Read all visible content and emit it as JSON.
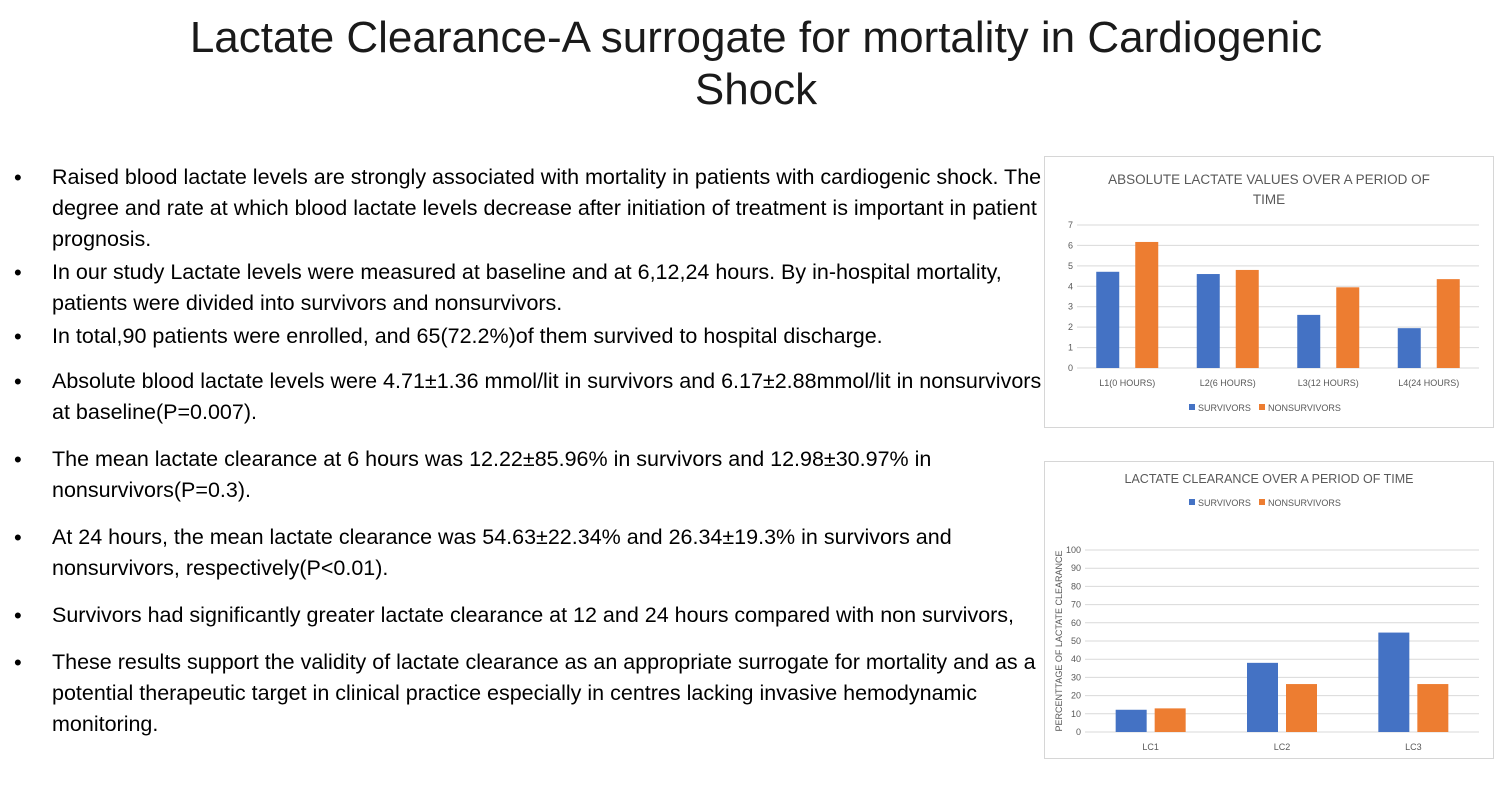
{
  "slide": {
    "title_line1": "Lactate Clearance-A surrogate for mortality in Cardiogenic",
    "title_line2": "Shock"
  },
  "bullets": [
    "Raised blood lactate levels are strongly associated with mortality in patients with cardiogenic shock. The degree and rate at which blood lactate levels decrease after initiation of treatment is important in patient prognosis.",
    "In our study Lactate levels were measured at baseline and at 6,12,24 hours. By in-hospital mortality, patients were divided into survivors and nonsurvivors.",
    "In total,90 patients were enrolled, and 65(72.2%)of them survived to hospital discharge.",
    "Absolute blood lactate levels were 4.71±1.36 mmol/lit in survivors and 6.17±2.88mmol/lit in nonsurvivors at baseline(P=0.007).",
    "The mean lactate clearance at 6 hours was 12.22±85.96% in survivors and 12.98±30.97% in nonsurvivors(P=0.3).",
    "At 24 hours, the mean lactate clearance was 54.63±22.34% and 26.34±19.3% in survivors and nonsurvivors, respectively(P<0.01).",
    "Survivors had significantly greater lactate clearance at 12 and 24 hours compared with non survivors,",
    "These results  support the validity of lactate clearance as an appropriate surrogate for mortality and as a potential therapeutic target in clinical practice especially in centres lacking invasive hemodynamic monitoring."
  ],
  "colors": {
    "survivors": "#4472C4",
    "nonsurvivors": "#ED7D31",
    "grid": "#d9d9d9",
    "text": "#595959"
  },
  "chart_data": [
    {
      "type": "bar",
      "title_lines": [
        "ABSOLUTE LACTATE VALUES OVER A PERIOD OF",
        "TIME"
      ],
      "categories": [
        "L1(0 HOURS)",
        "L2(6 HOURS)",
        "L3(12 HOURS)",
        "L4(24 HOURS)"
      ],
      "series": [
        {
          "name": "SURVIVORS",
          "values": [
            4.71,
            4.6,
            2.6,
            1.95
          ]
        },
        {
          "name": "NONSURVIVORS",
          "values": [
            6.17,
            4.8,
            3.95,
            4.35
          ]
        }
      ],
      "ylim": [
        0,
        7
      ],
      "yticks": [
        0,
        1,
        2,
        3,
        4,
        5,
        6,
        7
      ],
      "ylabel": "",
      "grid": true,
      "legend_position": "bottom"
    },
    {
      "type": "bar",
      "title_lines": [
        "LACTATE CLEARANCE OVER A PERIOD OF TIME"
      ],
      "categories": [
        "LC1",
        "LC2",
        "LC3"
      ],
      "series": [
        {
          "name": "SURVIVORS",
          "values": [
            12.22,
            38,
            54.63
          ]
        },
        {
          "name": "NONSURVIVORS",
          "values": [
            12.98,
            26.34,
            26.34
          ]
        }
      ],
      "ylim": [
        0,
        100
      ],
      "yticks": [
        0,
        10,
        20,
        30,
        40,
        50,
        60,
        70,
        80,
        90,
        100
      ],
      "ylabel": "PERCENTTAGE OF LACTATE CLEARANCE",
      "grid": true,
      "legend_position": "top"
    }
  ]
}
